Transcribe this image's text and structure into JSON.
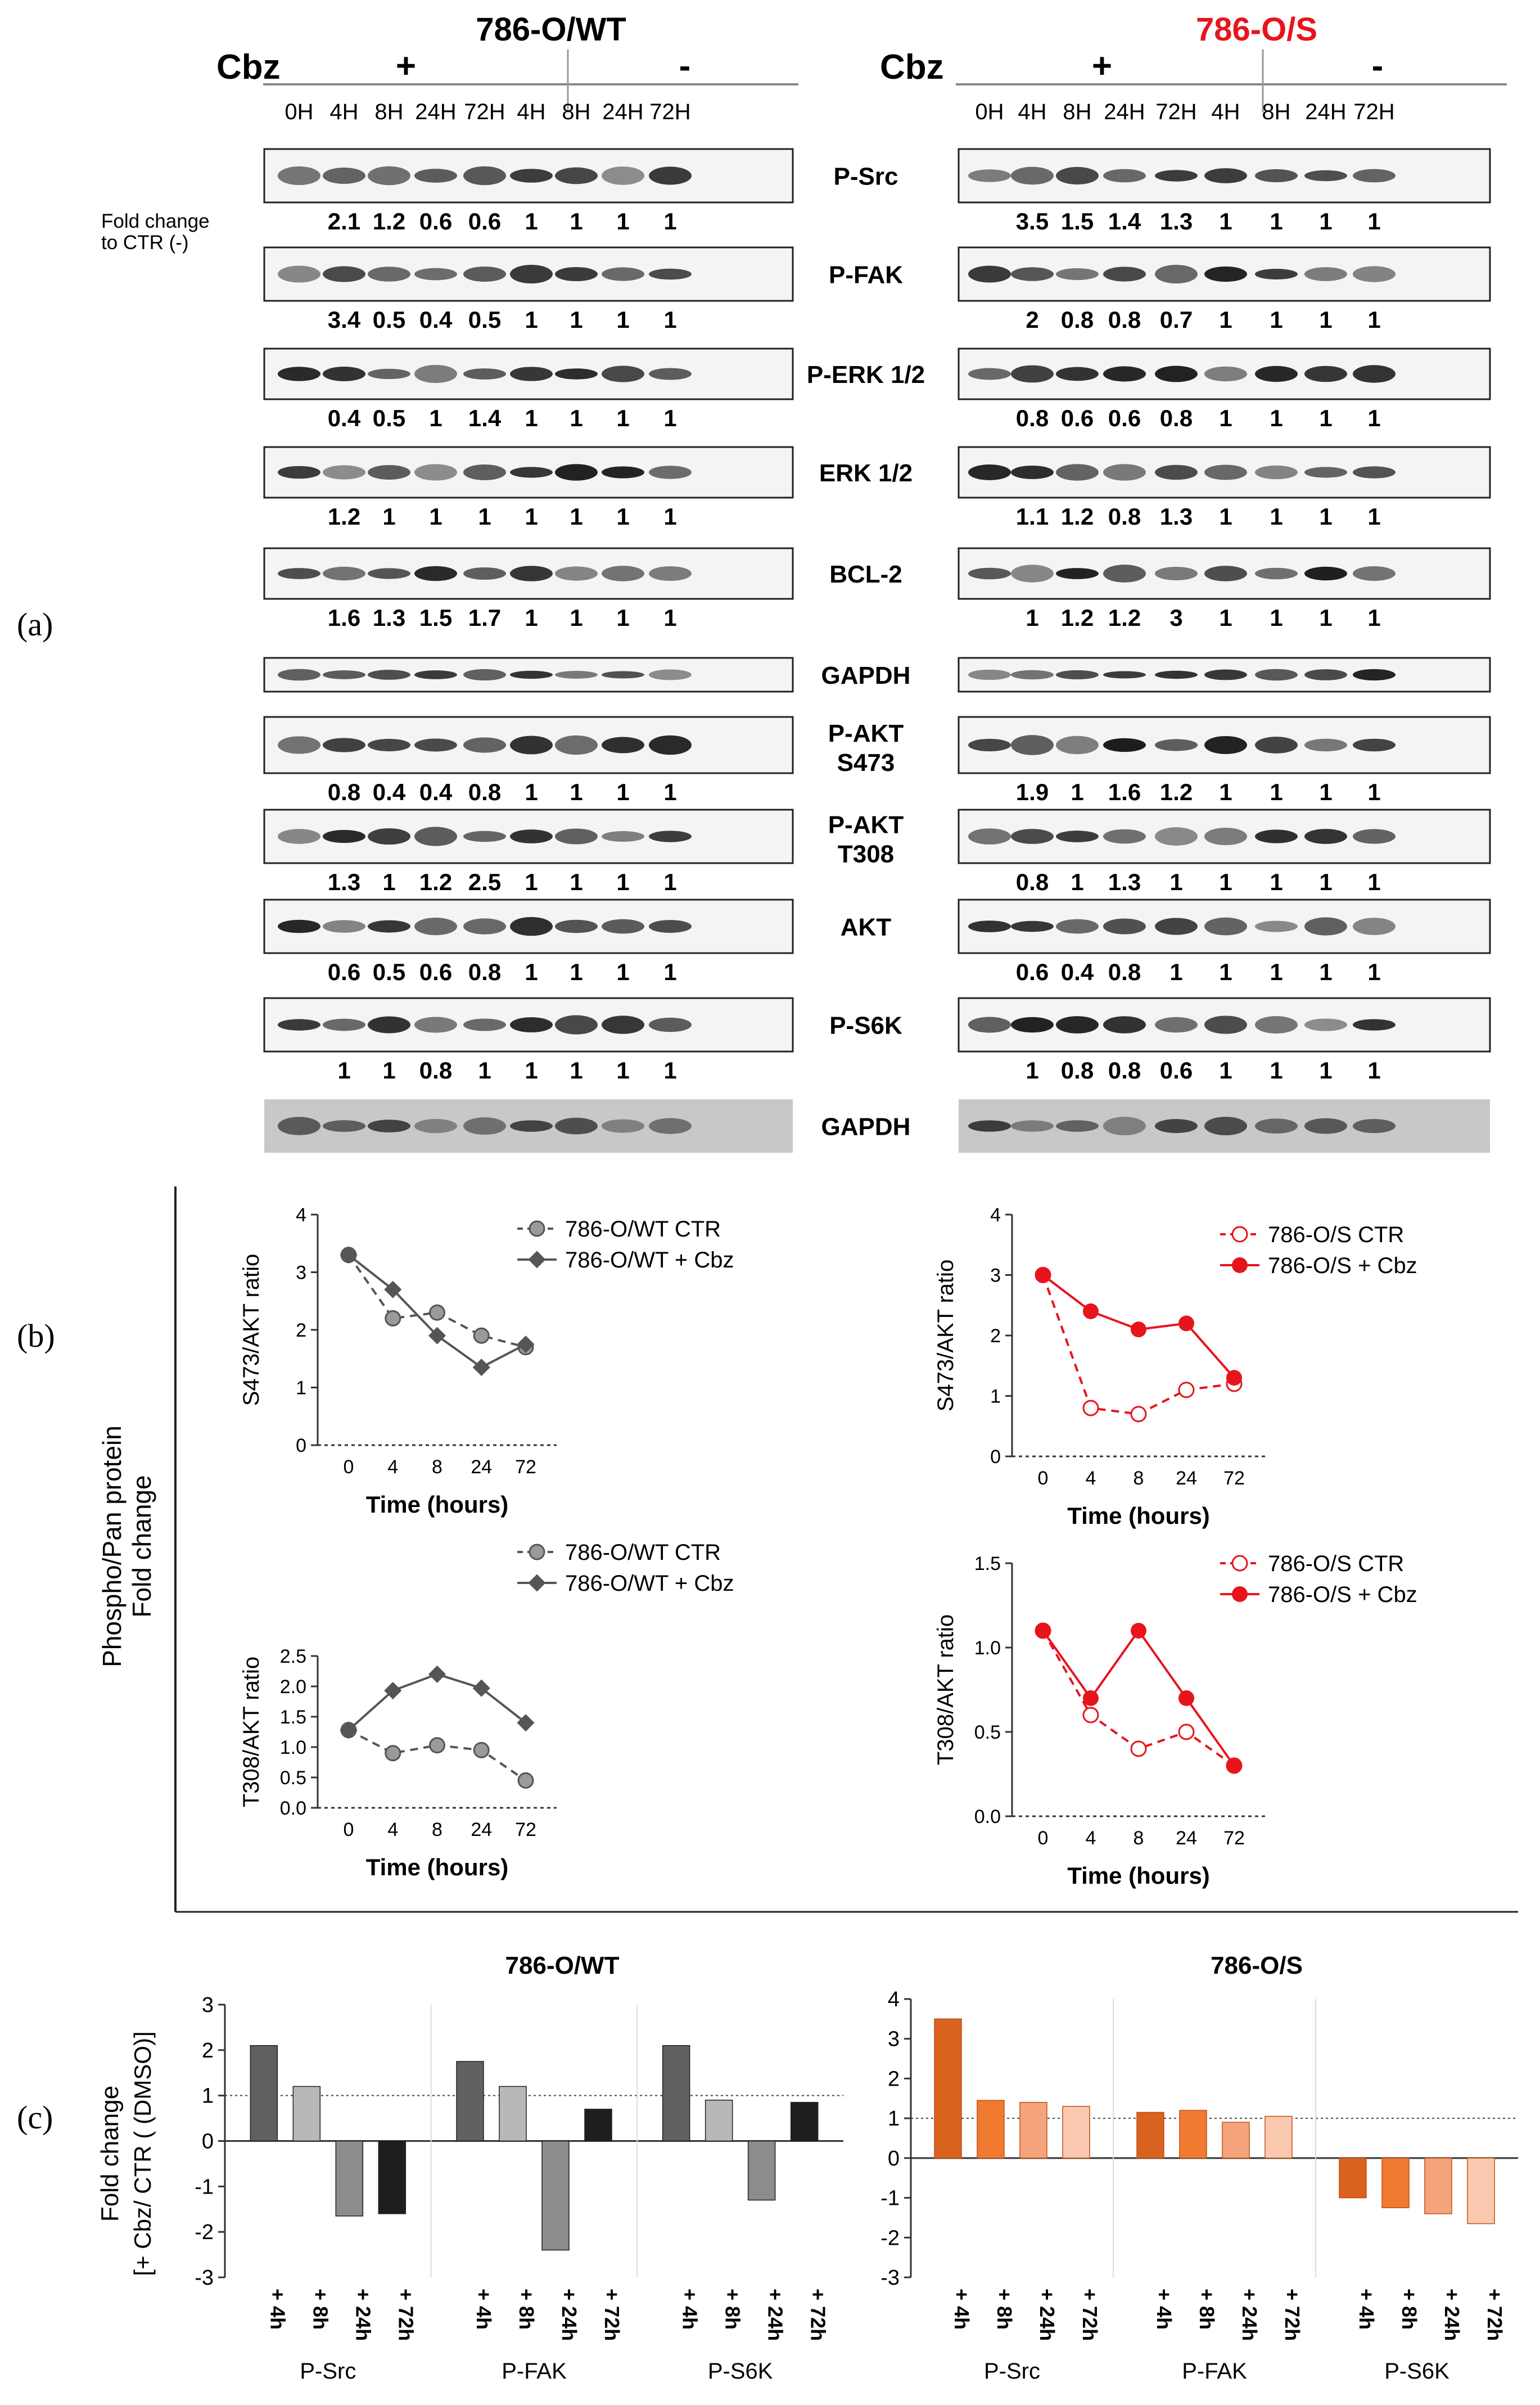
{
  "panel_labels": {
    "a": "(a)",
    "b": "(b)",
    "c": "(c)"
  },
  "wt_title": "786-O/WT",
  "s_title": "786-O/S",
  "s_title_color": "#e8141c",
  "cbz_label": "Cbz",
  "plus": "+",
  "minus": "-",
  "timepoints": [
    "0H",
    "4H",
    "8H",
    "24H",
    "72H",
    "4H",
    "8H",
    "24H",
    "72H"
  ],
  "fold_change_note": [
    "Fold change",
    "to CTR (-)"
  ],
  "blots": [
    {
      "name": "P-Src",
      "label": [
        "P-Src"
      ],
      "wt": [
        "2.1",
        "1.2",
        "0.6",
        "0.6",
        "1",
        "1",
        "1",
        "1"
      ],
      "s": [
        "3.5",
        "1.5",
        "1.4",
        "1.3",
        "1",
        "1",
        "1",
        "1"
      ]
    },
    {
      "name": "P-FAK",
      "label": [
        "P-FAK"
      ],
      "wt": [
        "3.4",
        "0.5",
        "0.4",
        "0.5",
        "1",
        "1",
        "1",
        "1"
      ],
      "s": [
        "2",
        "0.8",
        "0.8",
        "0.7",
        "1",
        "1",
        "1",
        "1"
      ]
    },
    {
      "name": "P-ERK",
      "label": [
        "P-ERK 1/2"
      ],
      "wt": [
        "0.4",
        "0.5",
        "1",
        "1.4",
        "1",
        "1",
        "1",
        "1"
      ],
      "s": [
        "0.8",
        "0.6",
        "0.6",
        "0.8",
        "1",
        "1",
        "1",
        "1"
      ]
    },
    {
      "name": "ERK",
      "label": [
        "ERK 1/2"
      ],
      "wt": [
        "1.2",
        "1",
        "1",
        "1",
        "1",
        "1",
        "1",
        "1"
      ],
      "s": [
        "1.1",
        "1.2",
        "0.8",
        "1.3",
        "1",
        "1",
        "1",
        "1"
      ]
    },
    {
      "name": "BCL-2",
      "label": [
        "BCL-2"
      ],
      "wt": [
        "1.6",
        "1.3",
        "1.5",
        "1.7",
        "1",
        "1",
        "1",
        "1"
      ],
      "s": [
        "1",
        "1.2",
        "1.2",
        "3",
        "1",
        "1",
        "1",
        "1"
      ]
    },
    {
      "name": "GAPDH-1",
      "label": [
        "GAPDH"
      ],
      "wt": [],
      "s": []
    },
    {
      "name": "P-AKT-S473",
      "label": [
        "P-AKT",
        "S473"
      ],
      "wt": [
        "0.8",
        "0.4",
        "0.4",
        "0.8",
        "1",
        "1",
        "1",
        "1"
      ],
      "s": [
        "1.9",
        "1",
        "1.6",
        "1.2",
        "1",
        "1",
        "1",
        "1"
      ]
    },
    {
      "name": "P-AKT-T308",
      "label": [
        "P-AKT",
        "T308"
      ],
      "wt": [
        "1.3",
        "1",
        "1.2",
        "2.5",
        "1",
        "1",
        "1",
        "1"
      ],
      "s": [
        "0.8",
        "1",
        "1.3",
        "1",
        "1",
        "1",
        "1",
        "1"
      ]
    },
    {
      "name": "AKT",
      "label": [
        "AKT"
      ],
      "wt": [
        "0.6",
        "0.5",
        "0.6",
        "0.8",
        "1",
        "1",
        "1",
        "1"
      ],
      "s": [
        "0.6",
        "0.4",
        "0.8",
        "1",
        "1",
        "1",
        "1",
        "1"
      ]
    },
    {
      "name": "P-S6K",
      "label": [
        "P-S6K"
      ],
      "wt": [
        "1",
        "1",
        "0.8",
        "1",
        "1",
        "1",
        "1",
        "1"
      ],
      "s": [
        "1",
        "0.8",
        "0.8",
        "0.6",
        "1",
        "1",
        "1",
        "1"
      ]
    },
    {
      "name": "GAPDH-2",
      "label": [
        "GAPDH"
      ],
      "wt": [],
      "s": []
    }
  ],
  "panel_b": {
    "y_title": [
      "Phospho/Pan protein",
      "Fold change"
    ],
    "x_title": "Time (hours)",
    "x_ticks": [
      "0",
      "4",
      "8",
      "24",
      "72"
    ],
    "wt_color": "#555555",
    "s_color": "#e8141c"
  },
  "panel_c": {
    "wt_title": "786-O/WT",
    "s_title": "786-O/S",
    "y_title": [
      "Fold change",
      "[+ Cbz/ CTR ( (DMSO)]"
    ],
    "y_ticks": [
      "-3",
      "-2",
      "-1",
      "0",
      "1",
      "2",
      "3",
      "4"
    ],
    "bar_labels": [
      "+ 4h",
      "+ 8h",
      "+ 24h",
      "+ 72h"
    ],
    "groups": [
      "P-Src",
      "P-FAK",
      "P-S6K"
    ],
    "wt_colors": [
      "#606060",
      "#b8b8b8",
      "#8c8c8c",
      "#1e1e1e"
    ],
    "s_colors": [
      "#d9621f",
      "#f07a30",
      "#f5a37a",
      "#fbc9b0"
    ]
  },
  "chart_data": [
    {
      "type": "line",
      "id": "b-wt-s473",
      "title": "",
      "xlabel": "Time (hours)",
      "ylabel": "S473/AKT ratio",
      "categories": [
        "0",
        "4",
        "8",
        "24",
        "72"
      ],
      "ylim": [
        0,
        4
      ],
      "y_ticks": [
        "0",
        "1",
        "2",
        "3",
        "4"
      ],
      "series": [
        {
          "name": "786-O/WT CTR",
          "style": "dashed-open",
          "values": [
            3.3,
            2.2,
            2.3,
            1.9,
            1.7
          ]
        },
        {
          "name": "786-O/WT + Cbz",
          "style": "solid-diamond",
          "values": [
            3.3,
            2.7,
            1.9,
            1.35,
            1.75
          ]
        }
      ]
    },
    {
      "type": "line",
      "id": "b-s-s473",
      "title": "",
      "xlabel": "Time (hours)",
      "ylabel": "S473/AKT ratio",
      "categories": [
        "0",
        "4",
        "8",
        "24",
        "72"
      ],
      "ylim": [
        0,
        4
      ],
      "y_ticks": [
        "0",
        "1",
        "2",
        "3",
        "4"
      ],
      "series": [
        {
          "name": "786-O/S CTR",
          "style": "dashed-open",
          "values": [
            3.0,
            0.8,
            0.7,
            1.1,
            1.2
          ]
        },
        {
          "name": "786-O/S + Cbz",
          "style": "solid-filled",
          "values": [
            3.0,
            2.4,
            2.1,
            2.2,
            1.3
          ]
        }
      ]
    },
    {
      "type": "line",
      "id": "b-wt-t308",
      "title": "",
      "xlabel": "Time (hours)",
      "ylabel": "T308/AKT ratio",
      "categories": [
        "0",
        "4",
        "8",
        "24",
        "72"
      ],
      "ylim": [
        0,
        2.5
      ],
      "y_ticks": [
        "0.0",
        "0.5",
        "1.0",
        "1.5",
        "2.0",
        "2.5"
      ],
      "series": [
        {
          "name": "786-O/WT CTR",
          "style": "dashed-open",
          "values": [
            1.28,
            0.9,
            1.03,
            0.95,
            0.45
          ]
        },
        {
          "name": "786-O/WT + Cbz",
          "style": "solid-diamond",
          "values": [
            1.28,
            1.93,
            2.2,
            1.97,
            1.4
          ]
        }
      ]
    },
    {
      "type": "line",
      "id": "b-s-t308",
      "title": "",
      "xlabel": "Time (hours)",
      "ylabel": "T308/AKT ratio",
      "categories": [
        "0",
        "4",
        "8",
        "24",
        "72"
      ],
      "ylim": [
        0,
        1.5
      ],
      "y_ticks": [
        "0.0",
        "0.5",
        "1.0",
        "1.5"
      ],
      "series": [
        {
          "name": "786-O/S CTR",
          "style": "dashed-open",
          "values": [
            1.1,
            0.6,
            0.4,
            0.5,
            0.3
          ]
        },
        {
          "name": "786-O/S + Cbz",
          "style": "solid-filled",
          "values": [
            1.1,
            0.7,
            1.1,
            0.7,
            0.3
          ]
        }
      ]
    },
    {
      "type": "bar",
      "id": "c-wt",
      "title": "786-O/WT",
      "ylabel": "Fold change [+ Cbz/ CTR ( (DMSO)]",
      "ylim": [
        -3,
        3
      ],
      "groups": [
        "P-Src",
        "P-FAK",
        "P-S6K"
      ],
      "categories": [
        "+ 4h",
        "+ 8h",
        "+ 24h",
        "+ 72h"
      ],
      "values": [
        [
          2.1,
          1.2,
          -1.65,
          -1.6
        ],
        [
          1.75,
          1.2,
          -2.4,
          0.7
        ],
        [
          2.1,
          0.9,
          -1.3,
          0.85
        ]
      ],
      "reference_line": 1
    },
    {
      "type": "bar",
      "id": "c-s",
      "title": "786-O/S",
      "ylabel": "",
      "ylim": [
        -3,
        4
      ],
      "groups": [
        "P-Src",
        "P-FAK",
        "P-S6K"
      ],
      "categories": [
        "+ 4h",
        "+ 8h",
        "+ 24h",
        "+ 72h"
      ],
      "values": [
        [
          3.5,
          1.45,
          1.4,
          1.3
        ],
        [
          1.15,
          1.2,
          0.9,
          1.05
        ],
        [
          -1.0,
          -1.25,
          -1.4,
          -1.65
        ]
      ],
      "reference_line": 1
    }
  ]
}
